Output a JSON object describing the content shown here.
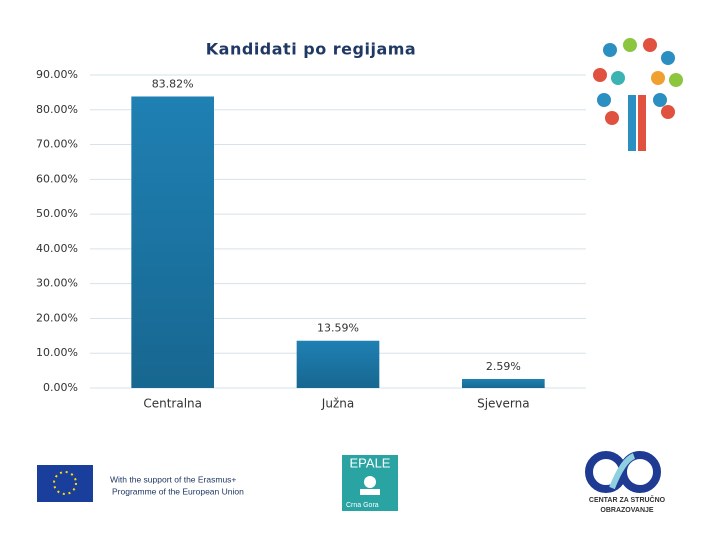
{
  "chart_data": {
    "type": "bar",
    "title": "Kandidati po regijama",
    "categories": [
      "Centralna",
      "Južna",
      "Sjeverna"
    ],
    "values": [
      83.82,
      13.59,
      2.59
    ],
    "value_labels": [
      "83.82%",
      "13.59%",
      "2.59%"
    ],
    "color": "#1f80b3",
    "ylim": [
      0,
      90
    ],
    "yticks": [
      {
        "value": 0,
        "label": "0.00%"
      },
      {
        "value": 10,
        "label": "10.00%"
      },
      {
        "value": 20,
        "label": "20.00%"
      },
      {
        "value": 30,
        "label": "30.00%"
      },
      {
        "value": 40,
        "label": "40.00%"
      },
      {
        "value": 50,
        "label": "50.00%"
      },
      {
        "value": 60,
        "label": "60.00%"
      },
      {
        "value": 70,
        "label": "70.00%"
      },
      {
        "value": 80,
        "label": "80.00%"
      },
      {
        "value": 90,
        "label": "90.00%"
      }
    ],
    "grid": true
  },
  "logos": {
    "erasmus_line1": "With the support of the Erasmus+",
    "erasmus_line2": "Programme of the European Union",
    "epale": "EPALE",
    "epale_country": "Crna Gora",
    "centar_line1": "CENTAR ZA STRUČNO",
    "centar_line2": "OBRAZOVANJE"
  }
}
